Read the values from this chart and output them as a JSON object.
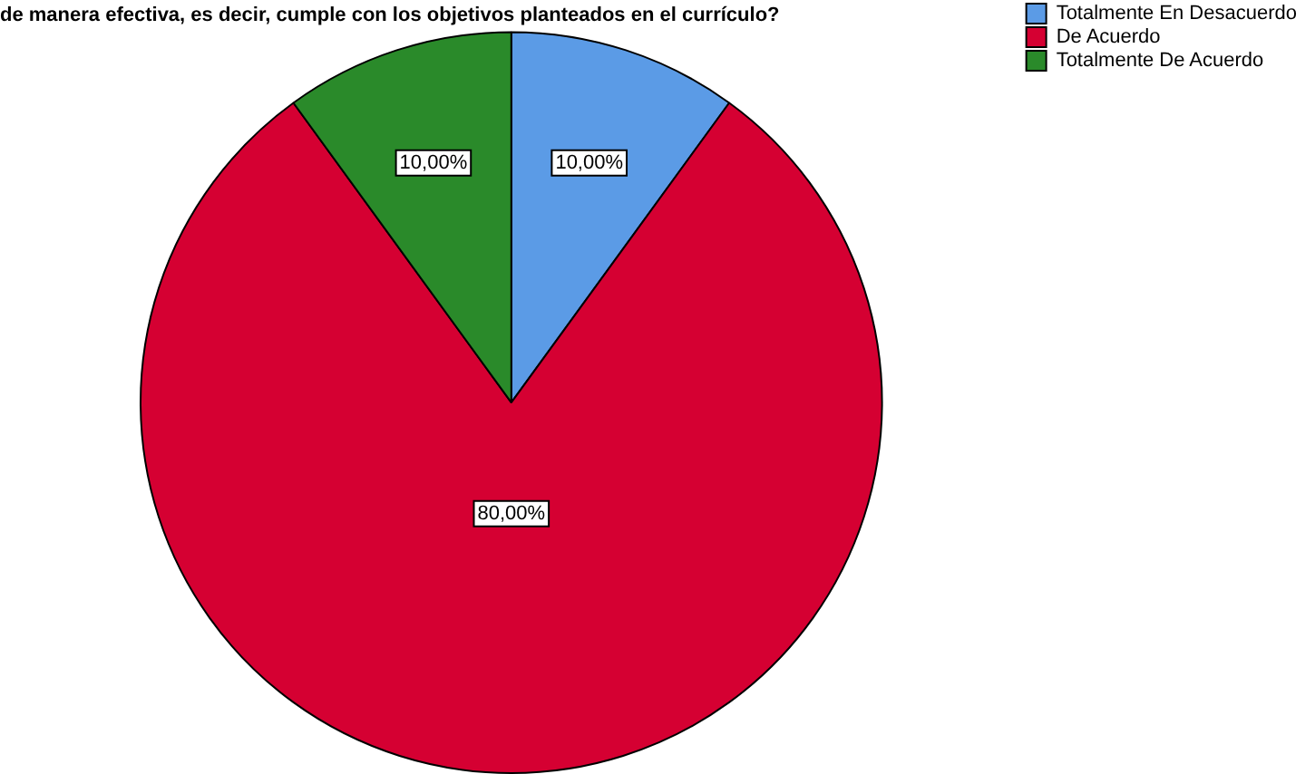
{
  "chart_data": {
    "type": "pie",
    "title": "de manera efectiva, es decir, cumple con los objetivos planteados en el currículo?",
    "categories": [
      "Totalmente En Desacuerdo",
      "De Acuerdo",
      "Totalmente De Acuerdo"
    ],
    "values": [
      10,
      80,
      10
    ],
    "colors": [
      "#5b9be6",
      "#d50032",
      "#2a8a2a"
    ],
    "value_labels": [
      "10,00%",
      "80,00%",
      "10,00%"
    ],
    "legend": "top right"
  }
}
